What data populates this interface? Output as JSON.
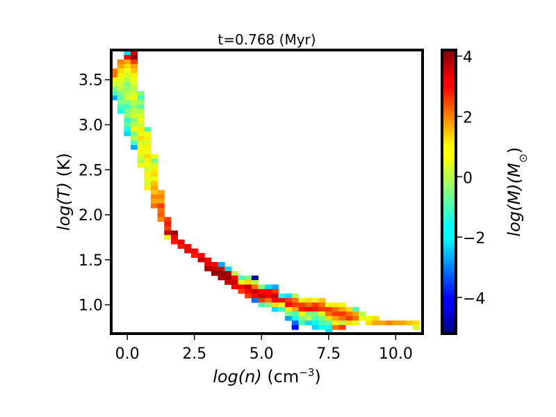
{
  "chart_data": {
    "type": "heatmap",
    "title": "t=0.768 (Myr)",
    "xlabel": {
      "var": "log(n)",
      "unit_pre": " (cm",
      "unit_sup": "−3",
      "unit_post": ")"
    },
    "ylabel": {
      "var": "log(T)",
      "unit": " (K)"
    },
    "colorbar_label": {
      "var": "log(M)",
      "unit_pre": "(M",
      "unit_sub": "⊙",
      "unit_post": ")"
    },
    "xlim": [
      -0.6,
      11.0
    ],
    "ylim": [
      0.68,
      3.83
    ],
    "clim": [
      -5.2,
      4.2
    ],
    "colormap": "jet",
    "bin_size": {
      "dx": 0.25,
      "dy": 0.05
    },
    "xticks": [
      {
        "value": 0.0,
        "label": "0.0"
      },
      {
        "value": 2.5,
        "label": "2.5"
      },
      {
        "value": 5.0,
        "label": "5.0"
      },
      {
        "value": 7.5,
        "label": "7.5"
      },
      {
        "value": 10.0,
        "label": "10.0"
      }
    ],
    "yticks": [
      {
        "value": 1.0,
        "label": "1.0"
      },
      {
        "value": 1.5,
        "label": "1.5"
      },
      {
        "value": 2.0,
        "label": "2.0"
      },
      {
        "value": 2.5,
        "label": "2.5"
      },
      {
        "value": 3.0,
        "label": "3.0"
      },
      {
        "value": 3.5,
        "label": "3.5"
      }
    ],
    "cticks": [
      {
        "value": -4,
        "label": "−4"
      },
      {
        "value": -2,
        "label": "−2"
      },
      {
        "value": 0,
        "label": "0"
      },
      {
        "value": 2,
        "label": "2"
      },
      {
        "value": 4,
        "label": "4"
      }
    ],
    "cells": [
      [
        -0.5,
        3.55,
        2.0
      ],
      [
        -0.5,
        3.6,
        2.0
      ],
      [
        -0.5,
        3.5,
        0.5
      ],
      [
        -0.5,
        3.45,
        0.2
      ],
      [
        -0.5,
        3.4,
        -0.5
      ],
      [
        -0.5,
        3.35,
        -1.0
      ],
      [
        -0.5,
        3.3,
        -2.5
      ],
      [
        -0.25,
        3.7,
        1.8
      ],
      [
        -0.25,
        3.65,
        1.5
      ],
      [
        -0.25,
        3.6,
        1.0
      ],
      [
        -0.25,
        3.55,
        0.8
      ],
      [
        -0.25,
        3.5,
        0.4
      ],
      [
        -0.25,
        3.45,
        0.2
      ],
      [
        -0.25,
        3.4,
        0.0
      ],
      [
        -0.25,
        3.35,
        -0.5
      ],
      [
        -0.25,
        3.3,
        -0.8
      ],
      [
        -0.25,
        3.25,
        -0.5
      ],
      [
        -0.25,
        3.2,
        -1.0
      ],
      [
        -0.25,
        3.15,
        -1.5
      ],
      [
        0.0,
        3.8,
        -2.0
      ],
      [
        0.0,
        3.75,
        3.0
      ],
      [
        0.0,
        3.7,
        1.5
      ],
      [
        0.0,
        3.65,
        1.0
      ],
      [
        0.0,
        3.6,
        0.5
      ],
      [
        0.0,
        3.55,
        0.3
      ],
      [
        0.0,
        3.5,
        0.0
      ],
      [
        0.0,
        3.45,
        -0.5
      ],
      [
        0.0,
        3.4,
        -0.3
      ],
      [
        0.0,
        3.35,
        0.0
      ],
      [
        0.0,
        3.3,
        0.2
      ],
      [
        0.0,
        3.25,
        -0.5
      ],
      [
        0.0,
        3.2,
        -1.0
      ],
      [
        0.0,
        3.15,
        -0.5
      ],
      [
        0.0,
        3.1,
        -0.3
      ],
      [
        0.0,
        3.05,
        -1.2
      ],
      [
        0.0,
        3.0,
        -0.8
      ],
      [
        0.0,
        2.95,
        -1.5
      ],
      [
        0.0,
        2.9,
        -2.0
      ],
      [
        0.25,
        3.8,
        3.5
      ],
      [
        0.25,
        3.75,
        4.0
      ],
      [
        0.25,
        3.7,
        2.5
      ],
      [
        0.25,
        3.65,
        1.5
      ],
      [
        0.25,
        3.6,
        1.2
      ],
      [
        0.25,
        3.55,
        0.8
      ],
      [
        0.25,
        3.5,
        0.5
      ],
      [
        0.25,
        3.45,
        0.3
      ],
      [
        0.25,
        3.4,
        0.0
      ],
      [
        0.25,
        3.35,
        0.2
      ],
      [
        0.25,
        3.3,
        0.5
      ],
      [
        0.25,
        3.25,
        0.0
      ],
      [
        0.25,
        3.2,
        -0.3
      ],
      [
        0.25,
        3.15,
        0.0
      ],
      [
        0.25,
        3.1,
        0.3
      ],
      [
        0.25,
        3.05,
        -0.5
      ],
      [
        0.25,
        3.0,
        0.0
      ],
      [
        0.25,
        2.95,
        0.5
      ],
      [
        0.25,
        2.9,
        -0.5
      ],
      [
        0.25,
        2.85,
        0.0
      ],
      [
        0.25,
        2.8,
        -1.0
      ],
      [
        0.25,
        2.75,
        -2.5
      ],
      [
        0.5,
        3.35,
        -0.5
      ],
      [
        0.5,
        3.3,
        -1.0
      ],
      [
        0.5,
        3.25,
        -0.3
      ],
      [
        0.5,
        3.2,
        -0.8
      ],
      [
        0.5,
        3.15,
        0.0
      ],
      [
        0.5,
        3.1,
        0.3
      ],
      [
        0.5,
        3.05,
        0.5
      ],
      [
        0.5,
        3.0,
        0.2
      ],
      [
        0.5,
        2.95,
        0.8
      ],
      [
        0.5,
        2.9,
        0.5
      ],
      [
        0.5,
        2.85,
        1.0
      ],
      [
        0.5,
        2.8,
        0.3
      ],
      [
        0.5,
        2.75,
        0.5
      ],
      [
        0.5,
        2.7,
        0.8
      ],
      [
        0.5,
        2.65,
        0.3
      ],
      [
        0.5,
        2.6,
        0.0
      ],
      [
        0.5,
        2.55,
        0.5
      ],
      [
        0.75,
        2.95,
        -1.0
      ],
      [
        0.75,
        2.9,
        0.5
      ],
      [
        0.75,
        2.85,
        0.8
      ],
      [
        0.75,
        2.8,
        0.3
      ],
      [
        0.75,
        2.75,
        0.8
      ],
      [
        0.75,
        2.7,
        0.5
      ],
      [
        0.75,
        2.65,
        1.0
      ],
      [
        0.75,
        2.6,
        0.8
      ],
      [
        0.75,
        2.55,
        0.5
      ],
      [
        0.75,
        2.5,
        0.3
      ],
      [
        0.75,
        2.45,
        0.8
      ],
      [
        0.75,
        2.4,
        0.5
      ],
      [
        0.75,
        2.35,
        0.3
      ],
      [
        0.75,
        2.3,
        0.8
      ],
      [
        1.0,
        2.65,
        0.5
      ],
      [
        1.0,
        2.6,
        -0.5
      ],
      [
        1.0,
        2.55,
        0.3
      ],
      [
        1.0,
        2.5,
        0.8
      ],
      [
        1.0,
        2.45,
        1.0
      ],
      [
        1.0,
        2.4,
        0.5
      ],
      [
        1.0,
        2.35,
        1.2
      ],
      [
        1.0,
        2.3,
        1.5
      ],
      [
        1.0,
        2.25,
        1.2
      ],
      [
        1.0,
        2.2,
        1.8
      ],
      [
        1.0,
        2.15,
        1.5
      ],
      [
        1.0,
        2.1,
        2.0
      ],
      [
        1.25,
        2.25,
        1.5
      ],
      [
        1.25,
        2.2,
        1.8
      ],
      [
        1.25,
        2.15,
        1.5
      ],
      [
        1.25,
        2.1,
        2.5
      ],
      [
        1.25,
        2.05,
        2.0
      ],
      [
        1.25,
        2.0,
        2.2
      ],
      [
        1.25,
        1.95,
        1.8
      ],
      [
        1.5,
        1.95,
        2.5
      ],
      [
        1.5,
        1.9,
        2.8
      ],
      [
        1.5,
        1.85,
        2.5
      ],
      [
        1.5,
        1.8,
        3.5
      ],
      [
        1.5,
        1.75,
        0.5
      ],
      [
        1.75,
        1.8,
        4.0
      ],
      [
        1.75,
        1.75,
        3.0
      ],
      [
        1.75,
        1.7,
        2.8
      ],
      [
        2.0,
        1.7,
        3.2
      ],
      [
        2.0,
        1.65,
        2.8
      ],
      [
        2.25,
        1.65,
        3.0
      ],
      [
        2.25,
        1.6,
        3.2
      ],
      [
        2.5,
        1.6,
        3.0
      ],
      [
        2.5,
        1.55,
        2.8
      ],
      [
        2.75,
        1.55,
        3.0
      ],
      [
        2.75,
        1.5,
        3.5
      ],
      [
        3.0,
        1.5,
        3.0
      ],
      [
        3.0,
        1.45,
        3.2
      ],
      [
        3.0,
        1.4,
        3.8
      ],
      [
        3.25,
        1.45,
        3.0
      ],
      [
        3.25,
        1.4,
        3.5
      ],
      [
        3.25,
        1.35,
        4.0
      ],
      [
        3.5,
        1.4,
        3.5
      ],
      [
        3.5,
        1.35,
        4.0
      ],
      [
        3.5,
        1.3,
        3.8
      ],
      [
        3.5,
        1.45,
        -2.5
      ],
      [
        3.75,
        1.4,
        -2.0
      ],
      [
        3.75,
        1.35,
        3.8
      ],
      [
        3.75,
        1.3,
        4.0
      ],
      [
        3.75,
        1.25,
        3.5
      ],
      [
        4.0,
        1.35,
        0.0
      ],
      [
        4.0,
        1.3,
        3.0
      ],
      [
        4.0,
        1.25,
        3.5
      ],
      [
        4.0,
        1.2,
        3.0
      ],
      [
        4.25,
        1.3,
        -1.0
      ],
      [
        4.25,
        1.25,
        0.5
      ],
      [
        4.25,
        1.2,
        3.0
      ],
      [
        4.25,
        1.15,
        2.5
      ],
      [
        4.5,
        1.3,
        -0.5
      ],
      [
        4.5,
        1.25,
        1.0
      ],
      [
        4.5,
        1.2,
        3.5
      ],
      [
        4.5,
        1.15,
        3.0
      ],
      [
        4.5,
        1.1,
        2.5
      ],
      [
        4.75,
        1.3,
        -4.8
      ],
      [
        4.75,
        1.25,
        0.0
      ],
      [
        4.75,
        1.2,
        2.0
      ],
      [
        4.75,
        1.15,
        3.5
      ],
      [
        4.75,
        1.1,
        3.0
      ],
      [
        4.75,
        1.05,
        -3.0
      ],
      [
        5.0,
        1.2,
        -0.5
      ],
      [
        5.0,
        1.15,
        3.0
      ],
      [
        5.0,
        1.1,
        3.5
      ],
      [
        5.0,
        1.05,
        2.5
      ],
      [
        5.0,
        1.0,
        -1.0
      ],
      [
        5.25,
        1.2,
        -2.0
      ],
      [
        5.25,
        1.15,
        3.0
      ],
      [
        5.25,
        1.1,
        3.2
      ],
      [
        5.25,
        1.05,
        2.0
      ],
      [
        5.25,
        1.0,
        -0.5
      ],
      [
        5.5,
        1.2,
        -2.5
      ],
      [
        5.5,
        1.15,
        2.5
      ],
      [
        5.5,
        1.1,
        3.5
      ],
      [
        5.5,
        1.05,
        3.0
      ],
      [
        5.5,
        1.0,
        1.0
      ],
      [
        5.5,
        0.95,
        -2.0
      ],
      [
        5.75,
        1.1,
        -1.5
      ],
      [
        5.75,
        1.05,
        3.0
      ],
      [
        5.75,
        1.0,
        0.5
      ],
      [
        5.75,
        0.95,
        -1.0
      ],
      [
        6.0,
        1.1,
        -2.0
      ],
      [
        6.0,
        1.05,
        2.5
      ],
      [
        6.0,
        1.0,
        3.0
      ],
      [
        6.0,
        0.95,
        0.5
      ],
      [
        6.0,
        0.9,
        -0.5
      ],
      [
        6.0,
        0.85,
        -2.5
      ],
      [
        6.25,
        1.1,
        0.0
      ],
      [
        6.25,
        1.05,
        2.0
      ],
      [
        6.25,
        1.0,
        2.5
      ],
      [
        6.25,
        0.95,
        1.5
      ],
      [
        6.25,
        0.9,
        -1.0
      ],
      [
        6.25,
        0.85,
        -1.5
      ],
      [
        6.25,
        0.8,
        -3.0
      ],
      [
        6.25,
        0.75,
        -4.0
      ],
      [
        6.5,
        1.05,
        0.5
      ],
      [
        6.5,
        1.0,
        2.5
      ],
      [
        6.5,
        0.95,
        2.8
      ],
      [
        6.5,
        0.9,
        0.5
      ],
      [
        6.5,
        0.85,
        -0.5
      ],
      [
        6.5,
        0.8,
        -1.0
      ],
      [
        6.75,
        1.05,
        1.0
      ],
      [
        6.75,
        1.0,
        2.0
      ],
      [
        6.75,
        0.95,
        3.0
      ],
      [
        6.75,
        0.9,
        -0.5
      ],
      [
        6.75,
        0.85,
        0.0
      ],
      [
        6.75,
        0.8,
        -2.0
      ],
      [
        7.0,
        1.05,
        0.8
      ],
      [
        7.0,
        1.0,
        2.5
      ],
      [
        7.0,
        0.95,
        2.8
      ],
      [
        7.0,
        0.9,
        -0.5
      ],
      [
        7.0,
        0.85,
        -1.0
      ],
      [
        7.0,
        0.8,
        -1.5
      ],
      [
        7.0,
        0.75,
        -2.0
      ],
      [
        7.25,
        1.05,
        1.2
      ],
      [
        7.25,
        1.0,
        2.0
      ],
      [
        7.25,
        0.95,
        2.5
      ],
      [
        7.25,
        0.9,
        0.5
      ],
      [
        7.25,
        0.85,
        -0.5
      ],
      [
        7.25,
        0.8,
        -1.0
      ],
      [
        7.25,
        0.75,
        -1.5
      ],
      [
        7.5,
        1.0,
        0.5
      ],
      [
        7.5,
        0.95,
        2.5
      ],
      [
        7.5,
        0.9,
        2.0
      ],
      [
        7.5,
        0.85,
        1.0
      ],
      [
        7.5,
        0.8,
        -0.8
      ],
      [
        7.5,
        0.75,
        -1.5
      ],
      [
        7.5,
        0.7,
        -2.0
      ],
      [
        7.75,
        1.0,
        0.8
      ],
      [
        7.75,
        0.95,
        2.0
      ],
      [
        7.75,
        0.9,
        2.5
      ],
      [
        7.75,
        0.85,
        1.5
      ],
      [
        7.75,
        0.8,
        0.5
      ],
      [
        7.75,
        0.75,
        2.0
      ],
      [
        8.0,
        1.0,
        0.5
      ],
      [
        8.0,
        0.95,
        1.5
      ],
      [
        8.0,
        0.9,
        2.5
      ],
      [
        8.0,
        0.85,
        2.0
      ],
      [
        8.0,
        0.8,
        0.0
      ],
      [
        8.0,
        0.75,
        2.5
      ],
      [
        8.25,
        0.95,
        1.0
      ],
      [
        8.25,
        0.9,
        2.0
      ],
      [
        8.25,
        0.85,
        2.5
      ],
      [
        8.25,
        0.8,
        1.0
      ],
      [
        8.5,
        0.95,
        -1.0
      ],
      [
        8.5,
        0.9,
        1.5
      ],
      [
        8.5,
        0.85,
        2.0
      ],
      [
        8.5,
        0.8,
        0.5
      ],
      [
        8.75,
        0.9,
        0.0
      ],
      [
        8.75,
        0.85,
        0.5
      ],
      [
        9.0,
        0.85,
        0.5
      ],
      [
        9.0,
        0.8,
        1.0
      ],
      [
        9.25,
        0.85,
        1.0
      ],
      [
        9.25,
        0.8,
        1.5
      ],
      [
        9.5,
        0.8,
        1.5
      ],
      [
        9.75,
        0.8,
        1.8
      ],
      [
        10.0,
        0.8,
        1.5
      ],
      [
        10.25,
        0.8,
        1.5
      ],
      [
        10.5,
        0.8,
        1.2
      ],
      [
        10.75,
        0.8,
        1.0
      ],
      [
        10.75,
        0.75,
        0.3
      ]
    ]
  }
}
